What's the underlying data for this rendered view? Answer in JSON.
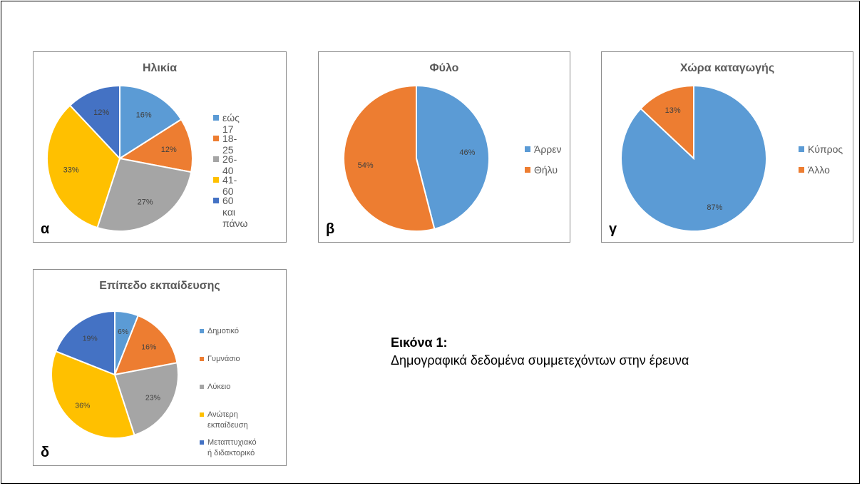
{
  "caption": {
    "title": "Εικόνα 1:",
    "text": "Δημογραφικά δεδομένα συμμετεχόντων στην έρευνα"
  },
  "chart_data": [
    {
      "id": "age",
      "type": "pie",
      "title": "Ηλικία",
      "panel_letter": "α",
      "categories": [
        "εώς 17",
        "18-25",
        "26-40",
        "41-60",
        "60 και πάνω"
      ],
      "values": [
        16,
        12,
        27,
        33,
        12
      ],
      "labels": [
        "16%",
        "12%",
        "27%",
        "33%",
        "12%"
      ],
      "colors": [
        "#5b9bd5",
        "#ed7d31",
        "#a5a5a5",
        "#ffc000",
        "#4472c4"
      ],
      "legend_position": "right"
    },
    {
      "id": "sex",
      "type": "pie",
      "title": "Φύλο",
      "panel_letter": "β",
      "categories": [
        "Άρρεν",
        "Θήλυ"
      ],
      "values": [
        46,
        54
      ],
      "labels": [
        "46%",
        "54%"
      ],
      "colors": [
        "#5b9bd5",
        "#ed7d31"
      ],
      "legend_position": "right"
    },
    {
      "id": "origin",
      "type": "pie",
      "title": "Χώρα καταγωγής",
      "panel_letter": "γ",
      "categories": [
        "Κύπρος",
        "Άλλο"
      ],
      "values": [
        87,
        13
      ],
      "labels": [
        "87%",
        "13%"
      ],
      "colors": [
        "#5b9bd5",
        "#ed7d31"
      ],
      "legend_position": "right"
    },
    {
      "id": "education",
      "type": "pie",
      "title": "Επίπεδο εκπαίδευσης",
      "panel_letter": "δ",
      "categories": [
        "Δημοτικό",
        "Γυμνάσιο",
        "Λύκειο",
        "Ανώτερη εκπαίδευση",
        "Μεταπτυχιακό ή διδακτορικό"
      ],
      "values": [
        6,
        16,
        23,
        36,
        19
      ],
      "labels": [
        "6%",
        "16%",
        "23%",
        "36%",
        "19%"
      ],
      "colors": [
        "#5b9bd5",
        "#ed7d31",
        "#a5a5a5",
        "#ffc000",
        "#4472c4"
      ],
      "legend_position": "right"
    }
  ]
}
